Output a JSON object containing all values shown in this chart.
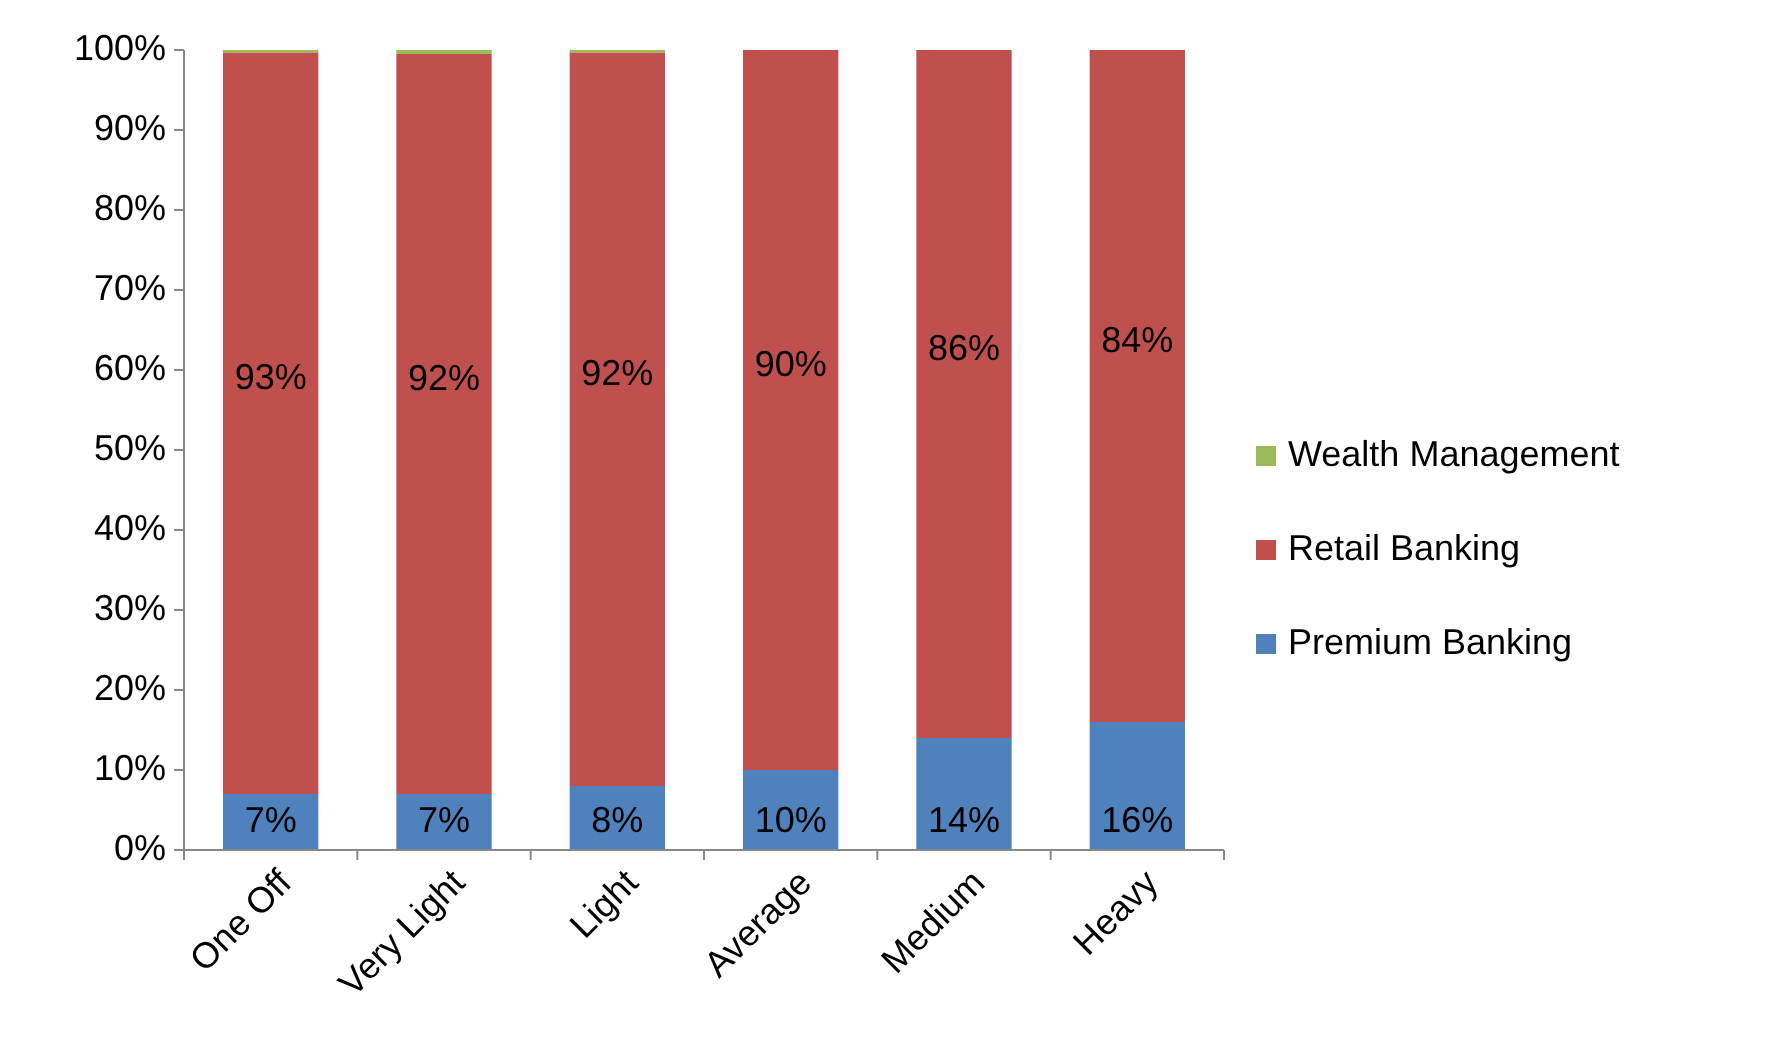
{
  "chart_data": {
    "type": "bar",
    "stacked": true,
    "categories": [
      "One Off",
      "Very Light",
      "Light",
      "Average",
      "Medium",
      "Heavy"
    ],
    "ylim": [
      0,
      100
    ],
    "yticks": [
      {
        "value": 0,
        "label": "0%"
      },
      {
        "value": 10,
        "label": "10%"
      },
      {
        "value": 20,
        "label": "20%"
      },
      {
        "value": 30,
        "label": "30%"
      },
      {
        "value": 40,
        "label": "40%"
      },
      {
        "value": 50,
        "label": "50%"
      },
      {
        "value": 60,
        "label": "60%"
      },
      {
        "value": 70,
        "label": "70%"
      },
      {
        "value": 80,
        "label": "80%"
      },
      {
        "value": 90,
        "label": "90%"
      },
      {
        "value": 100,
        "label": "100%"
      }
    ],
    "grid": false,
    "legend": "right",
    "series": [
      {
        "name": "Premium Banking",
        "color": "#4f81bd",
        "values": [
          7,
          7,
          8,
          10,
          14,
          16
        ],
        "value_labels": [
          "7%",
          "7%",
          "8%",
          "10%",
          "14%",
          "16%"
        ]
      },
      {
        "name": "Retail Banking",
        "color": "#c0504d",
        "values": [
          92.7,
          92.5,
          91.7,
          90,
          86,
          84
        ],
        "value_labels": [
          "93%",
          "92%",
          "92%",
          "90%",
          "86%",
          "84%"
        ]
      },
      {
        "name": "Wealth Management",
        "color": "#9bbb59",
        "values": [
          0.3,
          0.5,
          0.3,
          0,
          0,
          0
        ]
      }
    ]
  }
}
